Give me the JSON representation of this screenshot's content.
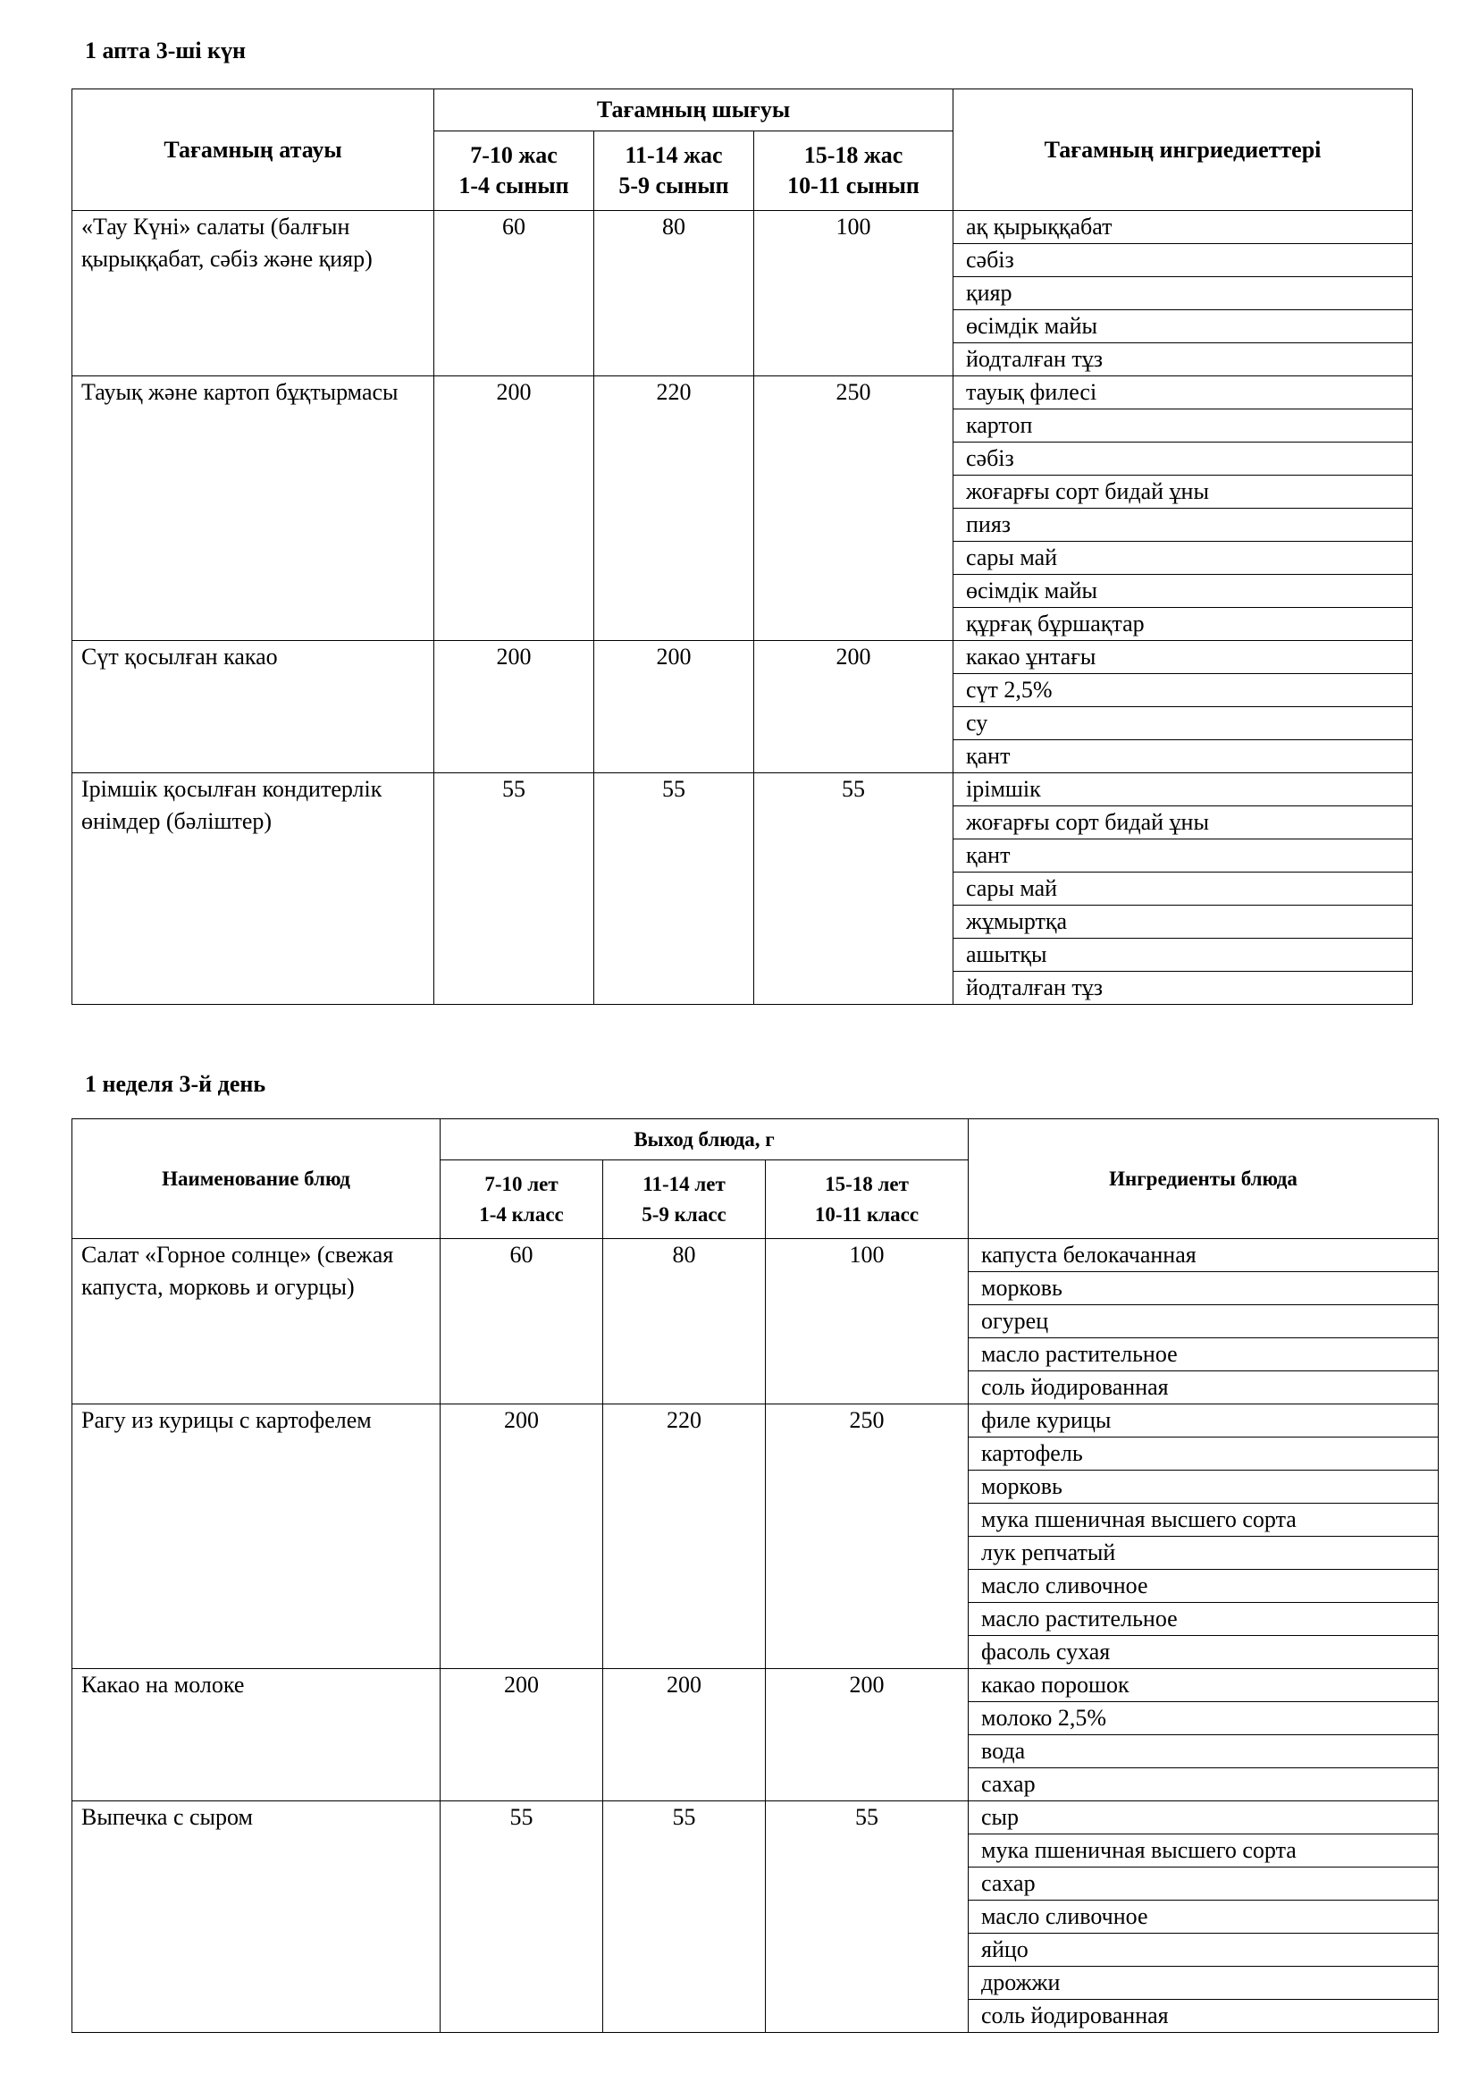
{
  "sections": [
    {
      "title": "1 апта 3-ші күн",
      "table": {
        "header": {
          "name": "Тағамның атауы",
          "output": "Тағамның шығуы",
          "ages": [
            [
              "7-10 жас",
              "1-4 сынып"
            ],
            [
              "11-14 жас",
              "5-9 сынып"
            ],
            [
              "15-18 жас",
              "10-11 сынып"
            ]
          ],
          "ingredients": "Тағамның ингриедиеттері"
        },
        "rows": [
          {
            "name": "«Тау Күні» салаты (балғын қырыққабат, сәбіз және қияр)",
            "amounts": [
              60,
              80,
              100
            ],
            "ingredients": [
              "ақ қырыққабат",
              "сәбіз",
              "қияр",
              "өсімдік майы",
              "йодталған тұз"
            ]
          },
          {
            "name": "Тауық және картоп бұқтырмасы",
            "amounts": [
              200,
              220,
              250
            ],
            "ingredients": [
              "тауық филесі",
              "картоп",
              "сәбіз",
              "жоғарғы сорт бидай ұны",
              "пияз",
              "сары май",
              "өсімдік майы",
              "құрғақ бұршақтар"
            ]
          },
          {
            "name": "Сүт қосылған какао",
            "amounts": [
              200,
              200,
              200
            ],
            "ingredients": [
              "какао ұнтағы",
              "сүт 2,5%",
              "су",
              "қант"
            ]
          },
          {
            "name": "Ірімшік қосылған кондитерлік өнімдер (бәліштер)",
            "amounts": [
              55,
              55,
              55
            ],
            "ingredients": [
              "ірімшік",
              "жоғарғы сорт бидай ұны",
              "қант",
              "сары май",
              "жұмыртқа",
              "ашытқы",
              "йодталған тұз"
            ]
          }
        ]
      }
    },
    {
      "title": "1 неделя 3-й день",
      "table": {
        "header": {
          "name": "Наименование блюд",
          "output": "Выход блюда, г",
          "ages": [
            [
              "7-10 лет",
              "1-4 класс"
            ],
            [
              "11-14 лет",
              "5-9 класс"
            ],
            [
              "15-18 лет",
              "10-11 класс"
            ]
          ],
          "ingredients": "Ингредиенты блюда"
        },
        "rows": [
          {
            "name": "Салат «Горное солнце» (свежая капуста, морковь и огурцы)",
            "amounts": [
              60,
              80,
              100
            ],
            "ingredients": [
              "капуста белокачанная",
              "морковь",
              "огурец",
              "масло растительное",
              "соль йодированная"
            ]
          },
          {
            "name": "Рагу из курицы с картофелем",
            "amounts": [
              200,
              220,
              250
            ],
            "ingredients": [
              "филе курицы",
              "картофель",
              "морковь",
              "мука пшеничная высшего сорта",
              "лук репчатый",
              "масло сливочное",
              "масло растительное",
              "фасоль сухая"
            ]
          },
          {
            "name": "Какао на молоке",
            "amounts": [
              200,
              200,
              200
            ],
            "ingredients": [
              "какао порошок",
              "молоко 2,5%",
              "вода",
              "сахар"
            ]
          },
          {
            "name": "Выпечка с сыром",
            "amounts": [
              55,
              55,
              55
            ],
            "ingredients": [
              "сыр",
              "мука пшеничная высшего сорта",
              "сахар",
              "масло сливочное",
              "яйцо",
              "дрожжи",
              "соль йодированная"
            ]
          }
        ]
      }
    }
  ]
}
